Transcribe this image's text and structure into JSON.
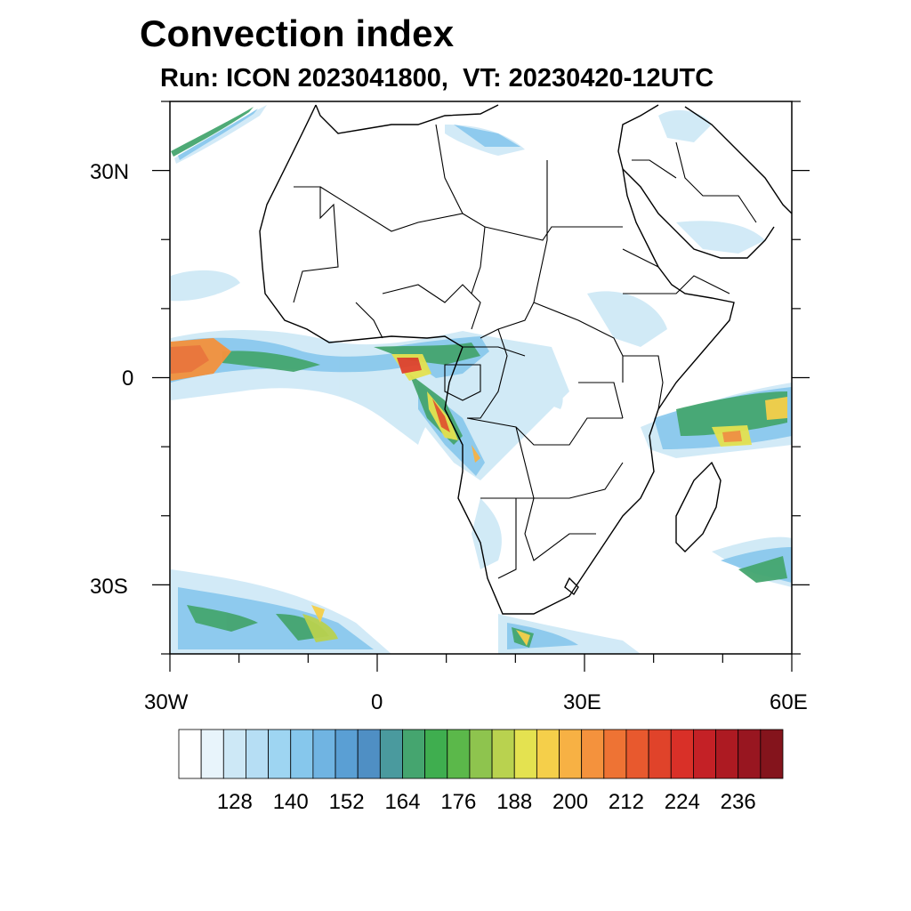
{
  "title": "Convection index",
  "subtitle": "Run: ICON 2023041800,  VT: 20230420-12UTC",
  "axes": {
    "lat_labels": [
      "30N",
      "0",
      "30S"
    ],
    "lon_labels": [
      "30W",
      "0",
      "30E",
      "60E"
    ]
  },
  "extent": {
    "lon_min": -30,
    "lon_max": 60,
    "lat_min": -40,
    "lat_max": 40
  },
  "colorbar": {
    "labels": [
      "128",
      "140",
      "152",
      "164",
      "176",
      "188",
      "200",
      "212",
      "224",
      "236"
    ],
    "colors": [
      "#ffffff",
      "#e8f4fb",
      "#cde8f6",
      "#b6def4",
      "#9ed5f2",
      "#86c7ec",
      "#70b4e2",
      "#5a9fd4",
      "#4f8fc4",
      "#4a9a9e",
      "#45a56f",
      "#3fae4f",
      "#5bb84a",
      "#8ec44e",
      "#b9d24f",
      "#e4e250",
      "#f5cf4a",
      "#f7b144",
      "#f4923d",
      "#ee7334",
      "#e8592e",
      "#e0432a",
      "#d93028",
      "#c42126",
      "#ad1a22",
      "#981620",
      "#84141c"
    ]
  }
}
